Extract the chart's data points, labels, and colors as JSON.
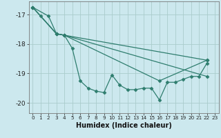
{
  "xlabel": "Humidex (Indice chaleur)",
  "background_color": "#cce8ee",
  "grid_color": "#aacccc",
  "line_color": "#2e7d6e",
  "xlim": [
    -0.5,
    23.5
  ],
  "ylim": [
    -20.35,
    -16.55
  ],
  "yticks": [
    -20,
    -19,
    -18,
    -17
  ],
  "xticks": [
    0,
    1,
    2,
    3,
    4,
    5,
    6,
    7,
    8,
    9,
    10,
    11,
    12,
    13,
    14,
    15,
    16,
    17,
    18,
    19,
    20,
    21,
    22,
    23
  ],
  "series": [
    {
      "x": [
        0,
        1,
        3,
        4,
        22
      ],
      "y": [
        -16.75,
        -17.05,
        -17.65,
        -17.7,
        -18.55
      ]
    },
    {
      "x": [
        0,
        3,
        4,
        22
      ],
      "y": [
        -16.75,
        -17.65,
        -17.7,
        -19.1
      ]
    },
    {
      "x": [
        0,
        3,
        4,
        16,
        22
      ],
      "y": [
        -16.75,
        -17.65,
        -17.7,
        -19.25,
        -18.55
      ]
    },
    {
      "x": [
        0,
        2,
        3,
        4,
        5,
        6,
        7,
        8,
        9,
        10,
        11,
        12,
        13,
        14,
        15,
        16,
        17,
        18,
        19,
        20,
        21,
        22
      ],
      "y": [
        -16.75,
        -17.05,
        -17.65,
        -17.7,
        -18.15,
        -19.25,
        -19.5,
        -19.6,
        -19.65,
        -19.05,
        -19.4,
        -19.55,
        -19.55,
        -19.5,
        -19.5,
        -19.9,
        -19.3,
        -19.3,
        -19.2,
        -19.1,
        -19.1,
        -18.65
      ]
    }
  ]
}
